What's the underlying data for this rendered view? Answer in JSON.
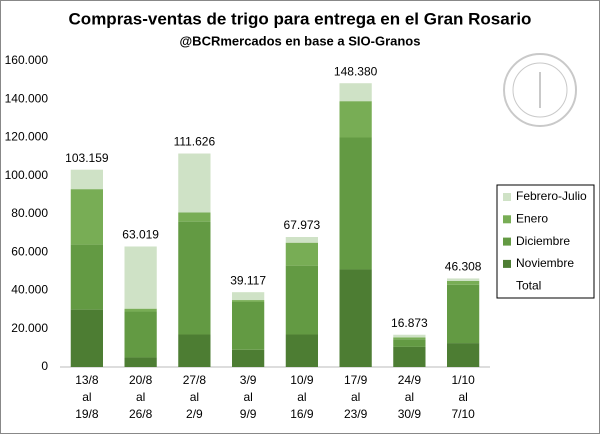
{
  "chart_data": {
    "type": "stacked_bar",
    "title": "Compras-ventas de trigo para entrega en el Gran Rosario",
    "subtitle": "@BCRmercados en base a SIO-Granos",
    "categories": [
      [
        "13/8",
        "al",
        "19/8"
      ],
      [
        "20/8",
        "al",
        "26/8"
      ],
      [
        "27/8",
        "al",
        "2/9"
      ],
      [
        "3/9",
        "al",
        "9/9"
      ],
      [
        "10/9",
        "al",
        "16/9"
      ],
      [
        "17/9",
        "al",
        "23/9"
      ],
      [
        "24/9",
        "al",
        "30/9"
      ],
      [
        "1/10",
        "al",
        "7/10"
      ]
    ],
    "series": [
      {
        "name": "Noviembre",
        "color": "#4d7d33",
        "values": [
          30000,
          5000,
          17000,
          9000,
          17000,
          51000,
          10500,
          12500
        ]
      },
      {
        "name": "Diciembre",
        "color": "#639a43",
        "values": [
          34000,
          24000,
          59000,
          25000,
          36000,
          69000,
          4000,
          30500
        ]
      },
      {
        "name": "Enero",
        "color": "#78ad55",
        "values": [
          29000,
          1500,
          4800,
          1000,
          12000,
          19000,
          1000,
          2000
        ]
      },
      {
        "name": "Febrero-Julio",
        "color": "#cfe2c6",
        "values": [
          10159,
          32519,
          30826,
          4117,
          2973,
          9380,
          1373,
          1308
        ]
      }
    ],
    "totals": {
      "name": "Total",
      "values": [
        103159,
        63019,
        111626,
        39117,
        67973,
        148380,
        16873,
        46308
      ],
      "value_labels": [
        "103.159",
        "63.019",
        "111.626",
        "39.117",
        "67.973",
        "148.380",
        "16.873",
        "46.308"
      ]
    },
    "ylim": [
      0,
      160000
    ],
    "yticks": [
      0,
      {
        "value": 20000,
        "label": "20.000"
      },
      {
        "value": 40000,
        "label": "40.000"
      },
      {
        "value": 60000,
        "label": "60.000"
      },
      {
        "value": 80000,
        "label": "80.000"
      },
      {
        "value": 100000,
        "label": "100.000"
      },
      {
        "value": 120000,
        "label": "120.000"
      },
      {
        "value": 140000,
        "label": "140.000"
      },
      {
        "value": 160000,
        "label": "160.000"
      }
    ],
    "grid": false,
    "legend": "right"
  }
}
